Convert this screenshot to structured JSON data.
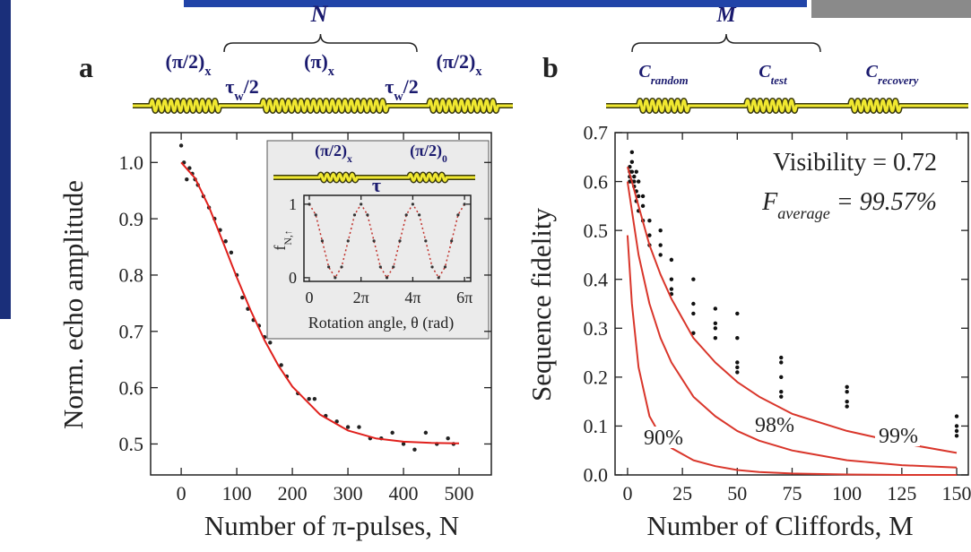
{
  "chart_data": [
    {
      "type": "scatter",
      "panel_label": "a",
      "sequence": {
        "brace_label": "N",
        "pulses": [
          {
            "text": "(π/2)",
            "sub": "x"
          },
          {
            "text": "τ",
            "sub": "w",
            "rest": "/2"
          },
          {
            "text": "(π)",
            "sub": "x"
          },
          {
            "text": "τ",
            "sub": "w",
            "rest": "/2"
          },
          {
            "text": "(π/2)",
            "sub": "x"
          }
        ]
      },
      "x_label": "Number of π-pulses, N",
      "y_label": "Norm. echo amplitude",
      "xlim": [
        -55,
        558
      ],
      "ylim": [
        0.445,
        1.053
      ],
      "xticks": [
        0,
        100,
        200,
        300,
        400,
        500
      ],
      "yticks": [
        {
          "value": 1,
          "label": "1.0"
        },
        0.9,
        0.8,
        0.7,
        0.6,
        0.5
      ],
      "series": [
        {
          "mode": "markers",
          "color": "#222222",
          "x": [
            0,
            5,
            10,
            15,
            20,
            25,
            30,
            40,
            50,
            60,
            70,
            80,
            90,
            100,
            110,
            120,
            130,
            140,
            150,
            160,
            180,
            190,
            210,
            230,
            240,
            260,
            280,
            300,
            320,
            340,
            360,
            380,
            400,
            420,
            440,
            460,
            480,
            490
          ],
          "values": [
            1.03,
            1.0,
            0.97,
            0.99,
            0.98,
            0.97,
            0.96,
            0.94,
            0.92,
            0.9,
            0.88,
            0.86,
            0.84,
            0.8,
            0.76,
            0.74,
            0.72,
            0.71,
            0.69,
            0.68,
            0.64,
            0.62,
            0.59,
            0.58,
            0.58,
            0.55,
            0.54,
            0.53,
            0.53,
            0.51,
            0.51,
            0.52,
            0.5,
            0.49,
            0.52,
            0.5,
            0.51,
            0.5
          ]
        },
        {
          "mode": "lines",
          "color": "#e0201c",
          "x": [
            0,
            25,
            50,
            75,
            100,
            125,
            150,
            175,
            200,
            250,
            300,
            350,
            400,
            450,
            500
          ],
          "values": [
            1.0,
            0.972,
            0.921,
            0.859,
            0.796,
            0.737,
            0.684,
            0.639,
            0.602,
            0.552,
            0.524,
            0.51,
            0.504,
            0.502,
            0.501
          ]
        }
      ]
    },
    {
      "type": "scatter",
      "panel_label": "b",
      "sequence": {
        "brace_label": "M",
        "pulses": [
          {
            "text": "C",
            "sub": "random"
          },
          {
            "text": "C",
            "sub": "test"
          },
          {
            "text": "C",
            "sub": "recovery"
          }
        ]
      },
      "x_label": "Number of Cliffords, M",
      "y_label": "Sequence fidelity",
      "annotations": [
        "Visibility = 0.72",
        {
          "text": "F",
          "sub": "average",
          "rest": " = 99.57%"
        }
      ],
      "xlim": [
        -5.7,
        155.3
      ],
      "ylim": [
        0,
        0.7
      ],
      "xticks": [
        0,
        25,
        50,
        75,
        100,
        125,
        150
      ],
      "yticks": [
        {
          "value": 0,
          "label": "0.0"
        },
        0.1,
        0.2,
        0.3,
        0.4,
        0.5,
        0.6,
        0.7
      ],
      "series": [
        {
          "mode": "markers",
          "color": "#111111",
          "x": [
            1,
            1,
            1,
            1,
            2,
            2,
            2,
            2,
            3,
            3,
            3,
            4,
            4,
            4,
            5,
            5,
            5,
            7,
            7,
            7,
            10,
            10,
            10,
            15,
            15,
            15,
            20,
            20,
            20,
            20,
            30,
            30,
            30,
            30,
            40,
            40,
            40,
            40,
            50,
            50,
            50,
            50,
            50,
            70,
            70,
            70,
            70,
            70,
            100,
            100,
            100,
            100,
            150,
            150,
            150,
            150
          ],
          "values": [
            0.62,
            0.6,
            0.61,
            0.63,
            0.66,
            0.62,
            0.6,
            0.64,
            0.61,
            0.59,
            0.6,
            0.58,
            0.56,
            0.62,
            0.6,
            0.57,
            0.54,
            0.57,
            0.55,
            0.52,
            0.52,
            0.49,
            0.47,
            0.5,
            0.47,
            0.45,
            0.44,
            0.4,
            0.37,
            0.38,
            0.4,
            0.35,
            0.33,
            0.29,
            0.34,
            0.31,
            0.3,
            0.28,
            0.33,
            0.28,
            0.23,
            0.21,
            0.22,
            0.24,
            0.23,
            0.2,
            0.17,
            0.16,
            0.18,
            0.17,
            0.15,
            0.14,
            0.12,
            0.1,
            0.09,
            0.08
          ]
        },
        {
          "mode": "lines",
          "name": "90%",
          "color": "#d9362b",
          "x": [
            0,
            2,
            5,
            10,
            15,
            20,
            30,
            40,
            50,
            60,
            75,
            100,
            125,
            150
          ],
          "values": [
            0.49,
            0.35,
            0.22,
            0.12,
            0.08,
            0.055,
            0.03,
            0.018,
            0.01,
            0.006,
            0.003,
            0.001,
            0,
            0
          ]
        },
        {
          "mode": "lines",
          "name": "98%",
          "color": "#d9362b",
          "x": [
            0,
            2,
            5,
            10,
            15,
            20,
            30,
            40,
            50,
            60,
            75,
            100,
            125,
            150
          ],
          "values": [
            0.6,
            0.54,
            0.45,
            0.35,
            0.28,
            0.23,
            0.16,
            0.12,
            0.09,
            0.07,
            0.05,
            0.03,
            0.02,
            0.015
          ]
        },
        {
          "mode": "lines",
          "name": "99%",
          "color": "#d9362b",
          "x": [
            0,
            2,
            5,
            10,
            15,
            20,
            30,
            40,
            50,
            60,
            75,
            100,
            125,
            150
          ],
          "values": [
            0.63,
            0.6,
            0.55,
            0.47,
            0.41,
            0.36,
            0.28,
            0.23,
            0.19,
            0.16,
            0.125,
            0.09,
            0.065,
            0.045
          ]
        }
      ]
    },
    {
      "type": "scatter",
      "sequence": {
        "brace_label": "τ",
        "pulses": [
          {
            "text": "(π/2)",
            "sub": "x"
          },
          {
            "text": "(π/2)",
            "sub": "0"
          }
        ]
      },
      "x_label": "Rotation angle, θ (rad)",
      "y_label": {
        "text": "f",
        "sub": "N,↑"
      },
      "xlim": [
        -0.65,
        19.6
      ],
      "ylim": [
        -0.05,
        1.12
      ],
      "xticks": [
        0,
        {
          "value": 6.283,
          "label": "2π"
        },
        {
          "value": 12.566,
          "label": "4π"
        },
        {
          "value": 18.85,
          "label": "6π"
        }
      ],
      "yticks": [
        0,
        1
      ],
      "series": [
        {
          "mode": "lines+markers",
          "line_style": "dotted",
          "color": "#c0302a",
          "marker_color": "#333333",
          "x": [
            0,
            0.785,
            1.571,
            2.356,
            3.142,
            3.927,
            4.712,
            5.498,
            6.283,
            7.069,
            7.854,
            8.639,
            9.425,
            10.21,
            10.996,
            11.781,
            12.566,
            13.352,
            14.137,
            14.923,
            15.708,
            16.493,
            17.279,
            18.064,
            18.85
          ],
          "values": [
            1,
            0.854,
            0.5,
            0.146,
            0,
            0.146,
            0.5,
            0.854,
            1,
            0.854,
            0.5,
            0.146,
            0,
            0.146,
            0.5,
            0.854,
            1,
            0.854,
            0.5,
            0.146,
            0,
            0.146,
            0.5,
            0.854,
            1
          ]
        }
      ]
    }
  ]
}
